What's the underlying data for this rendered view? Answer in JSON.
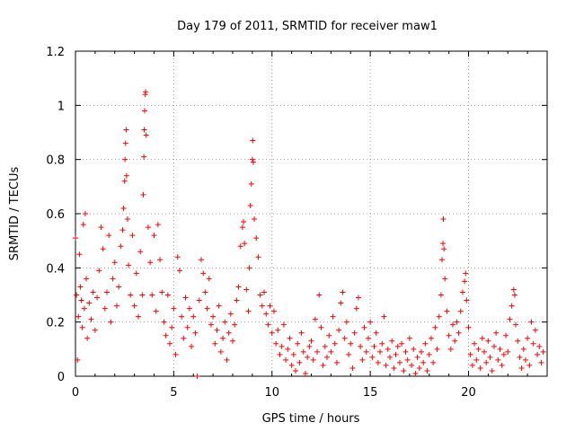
{
  "chart_data": {
    "type": "scatter",
    "title": "Day 179 of 2011, SRMTID for receiver maw1",
    "xlabel": "GPS time / hours",
    "ylabel": "SRMTID / TECUs",
    "xlim": [
      0,
      24
    ],
    "ylim": [
      0,
      1.2
    ],
    "xticks": [
      0,
      5,
      10,
      15,
      20
    ],
    "xtick_labels": [
      "0",
      "5",
      "10",
      "15",
      "20"
    ],
    "yticks": [
      0,
      0.2,
      0.4,
      0.6,
      0.8,
      1.0,
      1.2
    ],
    "ytick_labels": [
      "0",
      "0.2",
      "0.4",
      "0.6",
      "0.8",
      "1",
      "1.2"
    ],
    "grid": true,
    "marker": "+",
    "series": [
      {
        "name": "SRMTID maw1",
        "color": "#ff0000",
        "points": [
          [
            0.0,
            0.51
          ],
          [
            0.05,
            0.3
          ],
          [
            0.1,
            0.06
          ],
          [
            0.15,
            0.22
          ],
          [
            0.2,
            0.45
          ],
          [
            0.25,
            0.33
          ],
          [
            0.3,
            0.28
          ],
          [
            0.35,
            0.18
          ],
          [
            0.4,
            0.56
          ],
          [
            0.45,
            0.25
          ],
          [
            0.5,
            0.6
          ],
          [
            0.55,
            0.36
          ],
          [
            0.6,
            0.14
          ],
          [
            0.7,
            0.27
          ],
          [
            0.8,
            0.21
          ],
          [
            0.9,
            0.31
          ],
          [
            1.0,
            0.17
          ],
          [
            1.1,
            0.29
          ],
          [
            1.2,
            0.39
          ],
          [
            1.3,
            0.55
          ],
          [
            1.4,
            0.47
          ],
          [
            1.5,
            0.25
          ],
          [
            1.6,
            0.31
          ],
          [
            1.7,
            0.52
          ],
          [
            1.8,
            0.2
          ],
          [
            1.9,
            0.36
          ],
          [
            2.0,
            0.42
          ],
          [
            2.1,
            0.26
          ],
          [
            2.2,
            0.33
          ],
          [
            2.3,
            0.48
          ],
          [
            2.4,
            0.54
          ],
          [
            2.45,
            0.62
          ],
          [
            2.5,
            0.72
          ],
          [
            2.52,
            0.8
          ],
          [
            2.55,
            0.86
          ],
          [
            2.58,
            0.91
          ],
          [
            2.6,
            0.74
          ],
          [
            2.65,
            0.58
          ],
          [
            2.7,
            0.41
          ],
          [
            2.8,
            0.3
          ],
          [
            2.9,
            0.52
          ],
          [
            3.0,
            0.26
          ],
          [
            3.1,
            0.38
          ],
          [
            3.2,
            0.22
          ],
          [
            3.3,
            0.46
          ],
          [
            3.4,
            0.3
          ],
          [
            3.45,
            0.67
          ],
          [
            3.48,
            0.81
          ],
          [
            3.5,
            0.91
          ],
          [
            3.52,
            0.98
          ],
          [
            3.55,
            1.04
          ],
          [
            3.57,
            1.05
          ],
          [
            3.6,
            0.89
          ],
          [
            3.7,
            0.55
          ],
          [
            3.8,
            0.42
          ],
          [
            3.9,
            0.3
          ],
          [
            4.0,
            0.52
          ],
          [
            4.1,
            0.24
          ],
          [
            4.2,
            0.56
          ],
          [
            4.3,
            0.43
          ],
          [
            4.4,
            0.31
          ],
          [
            4.5,
            0.2
          ],
          [
            4.6,
            0.15
          ],
          [
            4.7,
            0.3
          ],
          [
            4.8,
            0.12
          ],
          [
            4.9,
            0.18
          ],
          [
            5.0,
            0.25
          ],
          [
            5.1,
            0.08
          ],
          [
            5.2,
            0.44
          ],
          [
            5.3,
            0.39
          ],
          [
            5.4,
            0.22
          ],
          [
            5.5,
            0.14
          ],
          [
            5.6,
            0.29
          ],
          [
            5.7,
            0.18
          ],
          [
            5.8,
            0.25
          ],
          [
            5.9,
            0.11
          ],
          [
            6.0,
            0.22
          ],
          [
            6.1,
            0.16
          ],
          [
            6.2,
            0.0
          ],
          [
            6.3,
            0.28
          ],
          [
            6.4,
            0.43
          ],
          [
            6.5,
            0.38
          ],
          [
            6.6,
            0.31
          ],
          [
            6.7,
            0.25
          ],
          [
            6.8,
            0.36
          ],
          [
            6.9,
            0.19
          ],
          [
            7.0,
            0.22
          ],
          [
            7.1,
            0.12
          ],
          [
            7.2,
            0.17
          ],
          [
            7.3,
            0.26
          ],
          [
            7.4,
            0.09
          ],
          [
            7.5,
            0.14
          ],
          [
            7.6,
            0.2
          ],
          [
            7.7,
            0.06
          ],
          [
            7.8,
            0.16
          ],
          [
            7.9,
            0.23
          ],
          [
            8.0,
            0.13
          ],
          [
            8.1,
            0.19
          ],
          [
            8.2,
            0.28
          ],
          [
            8.3,
            0.33
          ],
          [
            8.4,
            0.48
          ],
          [
            8.5,
            0.55
          ],
          [
            8.55,
            0.57
          ],
          [
            8.6,
            0.49
          ],
          [
            8.7,
            0.32
          ],
          [
            8.8,
            0.24
          ],
          [
            8.85,
            0.4
          ],
          [
            8.9,
            0.63
          ],
          [
            8.95,
            0.71
          ],
          [
            9.0,
            0.8
          ],
          [
            9.02,
            0.87
          ],
          [
            9.05,
            0.79
          ],
          [
            9.1,
            0.58
          ],
          [
            9.2,
            0.51
          ],
          [
            9.3,
            0.44
          ],
          [
            9.4,
            0.3
          ],
          [
            9.5,
            0.26
          ],
          [
            9.6,
            0.31
          ],
          [
            9.7,
            0.23
          ],
          [
            9.8,
            0.19
          ],
          [
            9.9,
            0.26
          ],
          [
            10.0,
            0.16
          ],
          [
            10.1,
            0.24
          ],
          [
            10.2,
            0.12
          ],
          [
            10.3,
            0.17
          ],
          [
            10.4,
            0.08
          ],
          [
            10.5,
            0.11
          ],
          [
            10.6,
            0.19
          ],
          [
            10.7,
            0.06
          ],
          [
            10.8,
            0.1
          ],
          [
            10.9,
            0.14
          ],
          [
            11.0,
            0.04
          ],
          [
            11.1,
            0.08
          ],
          [
            11.2,
            0.02
          ],
          [
            11.3,
            0.12
          ],
          [
            11.4,
            0.05
          ],
          [
            11.5,
            0.16
          ],
          [
            11.6,
            0.09
          ],
          [
            11.7,
            0.01
          ],
          [
            11.8,
            0.07
          ],
          [
            11.9,
            0.11
          ],
          [
            12.0,
            0.13
          ],
          [
            12.1,
            0.06
          ],
          [
            12.2,
            0.21
          ],
          [
            12.3,
            0.09
          ],
          [
            12.4,
            0.3
          ],
          [
            12.5,
            0.18
          ],
          [
            12.6,
            0.04
          ],
          [
            12.7,
            0.11
          ],
          [
            12.8,
            0.07
          ],
          [
            12.9,
            0.15
          ],
          [
            13.0,
            0.09
          ],
          [
            13.1,
            0.22
          ],
          [
            13.2,
            0.12
          ],
          [
            13.3,
            0.05
          ],
          [
            13.4,
            0.17
          ],
          [
            13.5,
            0.27
          ],
          [
            13.6,
            0.31
          ],
          [
            13.7,
            0.14
          ],
          [
            13.8,
            0.2
          ],
          [
            13.9,
            0.08
          ],
          [
            14.0,
            0.12
          ],
          [
            14.1,
            0.03
          ],
          [
            14.2,
            0.16
          ],
          [
            14.3,
            0.25
          ],
          [
            14.4,
            0.29
          ],
          [
            14.5,
            0.11
          ],
          [
            14.6,
            0.06
          ],
          [
            14.7,
            0.18
          ],
          [
            14.8,
            0.09
          ],
          [
            14.9,
            0.14
          ],
          [
            15.0,
            0.2
          ],
          [
            15.1,
            0.07
          ],
          [
            15.2,
            0.11
          ],
          [
            15.3,
            0.16
          ],
          [
            15.4,
            0.05
          ],
          [
            15.5,
            0.09
          ],
          [
            15.6,
            0.12
          ],
          [
            15.7,
            0.22
          ],
          [
            15.8,
            0.04
          ],
          [
            15.9,
            0.1
          ],
          [
            16.0,
            0.07
          ],
          [
            16.1,
            0.13
          ],
          [
            16.2,
            0.03
          ],
          [
            16.3,
            0.08
          ],
          [
            16.4,
            0.11
          ],
          [
            16.5,
            0.05
          ],
          [
            16.6,
            0.12
          ],
          [
            16.7,
            0.02
          ],
          [
            16.8,
            0.09
          ],
          [
            16.9,
            0.06
          ],
          [
            17.0,
            0.14
          ],
          [
            17.1,
            0.04
          ],
          [
            17.2,
            0.1
          ],
          [
            17.3,
            0.01
          ],
          [
            17.4,
            0.07
          ],
          [
            17.5,
            0.03
          ],
          [
            17.6,
            0.09
          ],
          [
            17.7,
            0.05
          ],
          [
            17.8,
            0.12
          ],
          [
            17.9,
            0.02
          ],
          [
            18.0,
            0.08
          ],
          [
            18.1,
            0.14
          ],
          [
            18.2,
            0.05
          ],
          [
            18.3,
            0.18
          ],
          [
            18.4,
            0.1
          ],
          [
            18.5,
            0.22
          ],
          [
            18.6,
            0.3
          ],
          [
            18.65,
            0.43
          ],
          [
            18.7,
            0.49
          ],
          [
            18.72,
            0.58
          ],
          [
            18.75,
            0.47
          ],
          [
            18.8,
            0.36
          ],
          [
            18.9,
            0.24
          ],
          [
            19.0,
            0.15
          ],
          [
            19.1,
            0.1
          ],
          [
            19.2,
            0.19
          ],
          [
            19.3,
            0.13
          ],
          [
            19.4,
            0.2
          ],
          [
            19.5,
            0.16
          ],
          [
            19.6,
            0.24
          ],
          [
            19.7,
            0.31
          ],
          [
            19.8,
            0.35
          ],
          [
            19.85,
            0.38
          ],
          [
            19.9,
            0.28
          ],
          [
            20.0,
            0.18
          ],
          [
            20.1,
            0.08
          ],
          [
            20.2,
            0.04
          ],
          [
            20.3,
            0.12
          ],
          [
            20.4,
            0.06
          ],
          [
            20.5,
            0.1
          ],
          [
            20.6,
            0.03
          ],
          [
            20.7,
            0.14
          ],
          [
            20.8,
            0.09
          ],
          [
            20.9,
            0.05
          ],
          [
            21.0,
            0.13
          ],
          [
            21.1,
            0.07
          ],
          [
            21.2,
            0.02
          ],
          [
            21.3,
            0.11
          ],
          [
            21.4,
            0.16
          ],
          [
            21.5,
            0.06
          ],
          [
            21.6,
            0.1
          ],
          [
            21.7,
            0.04
          ],
          [
            21.8,
            0.08
          ],
          [
            21.9,
            0.15
          ],
          [
            22.0,
            0.09
          ],
          [
            22.1,
            0.21
          ],
          [
            22.2,
            0.26
          ],
          [
            22.3,
            0.32
          ],
          [
            22.35,
            0.3
          ],
          [
            22.4,
            0.19
          ],
          [
            22.5,
            0.13
          ],
          [
            22.6,
            0.07
          ],
          [
            22.7,
            0.03
          ],
          [
            22.8,
            0.1
          ],
          [
            22.9,
            0.06
          ],
          [
            23.0,
            0.14
          ],
          [
            23.1,
            0.04
          ],
          [
            23.2,
            0.2
          ],
          [
            23.3,
            0.12
          ],
          [
            23.4,
            0.17
          ],
          [
            23.5,
            0.08
          ],
          [
            23.6,
            0.11
          ],
          [
            23.7,
            0.05
          ],
          [
            23.8,
            0.09
          ]
        ]
      }
    ]
  }
}
